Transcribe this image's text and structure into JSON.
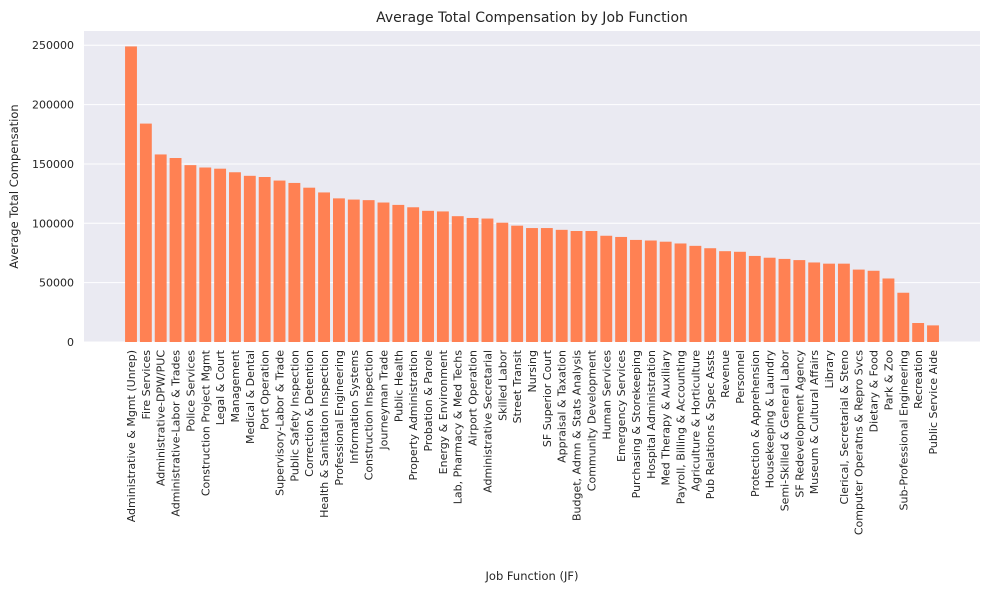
{
  "chart_data": {
    "type": "bar",
    "title": "Average Total Compensation by Job Function",
    "xlabel": "Job Function (JF)",
    "ylabel": "Average Total Compensation",
    "ylim": [
      0,
      262000
    ],
    "yticks": [
      0,
      50000,
      100000,
      150000,
      200000,
      250000
    ],
    "ytick_labels": [
      "0",
      "50000",
      "100000",
      "150000",
      "200000",
      "250000"
    ],
    "grid": true,
    "colors": {
      "bar": "#ff8153",
      "plot_bg": "#eaeaf2",
      "grid": "#ffffff",
      "page_bg": "#ffffff"
    },
    "categories": [
      "Administrative & Mgmt (Unrep)",
      "Fire Services",
      "Administrative-DPW/PUC",
      "Administrative-Labor & Trades",
      "Police Services",
      "Construction Project Mgmt",
      "Legal & Court",
      "Management",
      "Medical & Dental",
      "Port Operation",
      "Supervisory-Labor & Trade",
      "Public Safety Inspection",
      "Correction & Detention",
      "Health & Sanitation Inspection",
      "Professional Engineering",
      "Information Systems",
      "Construction Inspection",
      "Journeyman Trade",
      "Public Health",
      "Property Administration",
      "Probation & Parole",
      "Energy & Environment",
      "Lab, Pharmacy & Med Techs",
      "Airport Operation",
      "Administrative Secretarial",
      "Skilled Labor",
      "Street Transit",
      "Nursing",
      "SF Superior Court",
      "Appraisal & Taxation",
      "Budget, Admn & Stats Analysis",
      "Community Development",
      "Human Services",
      "Emergency Services",
      "Purchasing & Storekeeping",
      "Hospital Administration",
      "Med Therapy & Auxiliary",
      "Payroll, Billing & Accounting",
      "Agriculture & Horticulture",
      "Pub Relations & Spec Assts",
      "Revenue",
      "Personnel",
      "Protection & Apprehension",
      "Housekeeping & Laundry",
      "Semi-Skilled & General Labor",
      "SF Redevelopment Agency",
      "Museum & Cultural Affairs",
      "Library",
      "Clerical, Secretarial & Steno",
      "Computer Operatns & Repro Svcs",
      "Dietary & Food",
      "Park & Zoo",
      "Sub-Professional Engineering",
      "Recreation",
      "Public Service Aide"
    ],
    "values": [
      249000,
      184000,
      158000,
      155000,
      149000,
      147000,
      146000,
      143000,
      140000,
      139000,
      136000,
      134000,
      130000,
      126000,
      121000,
      120000,
      119500,
      117500,
      115500,
      113500,
      110500,
      110000,
      106000,
      104500,
      104000,
      100500,
      98000,
      96000,
      96000,
      94500,
      93500,
      93500,
      89500,
      88500,
      86000,
      85500,
      84500,
      83000,
      81000,
      79000,
      76500,
      76000,
      72500,
      71000,
      70000,
      69000,
      67000,
      66000,
      66000,
      61000,
      60000,
      53500,
      41500,
      16000,
      14000
    ]
  }
}
